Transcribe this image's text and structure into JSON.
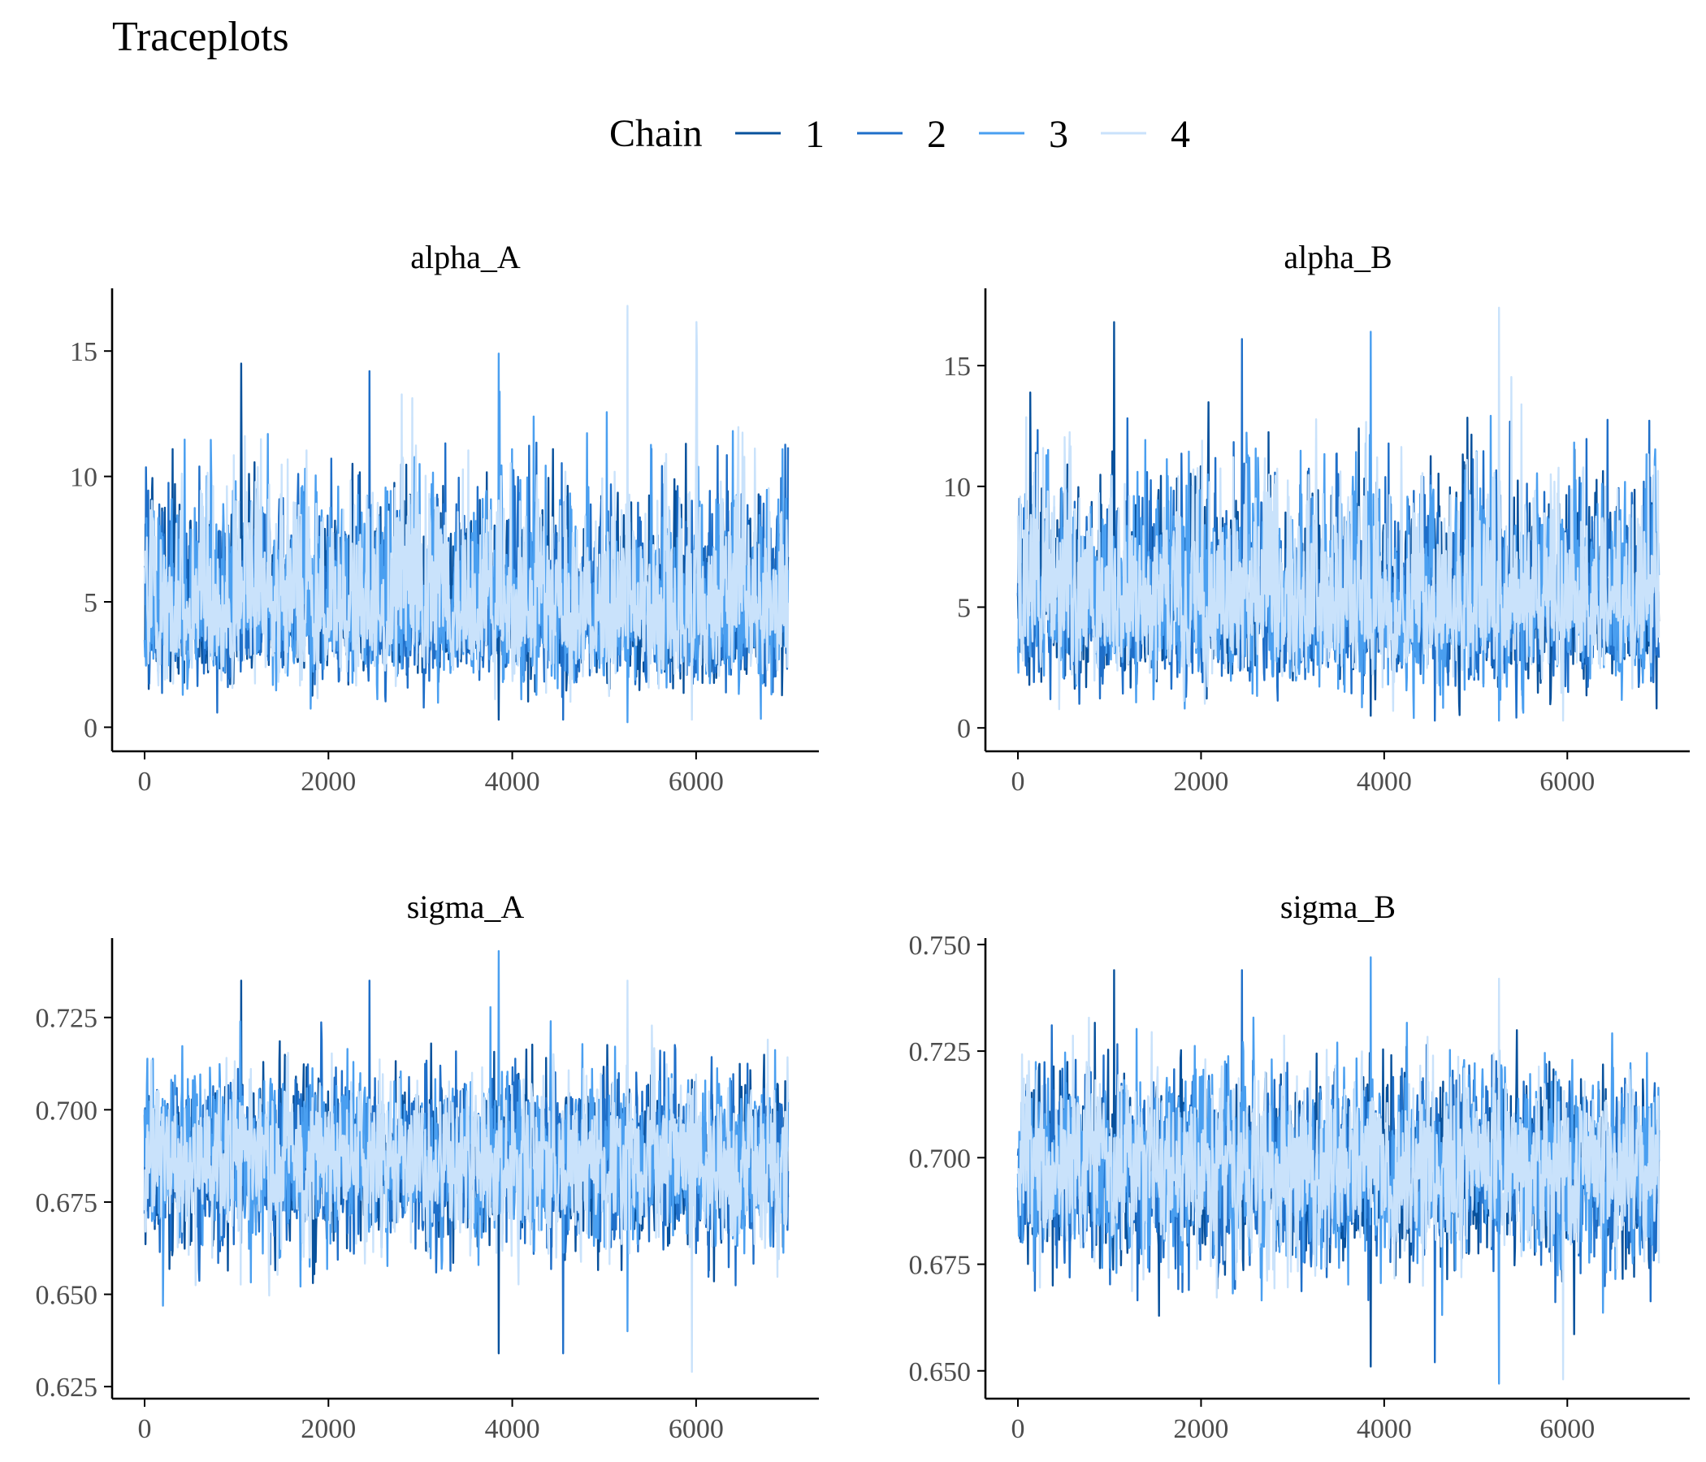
{
  "title": "Traceplots",
  "legend": {
    "title": "Chain",
    "position": "top-center",
    "entries": [
      {
        "label": "1",
        "color": "#08519c"
      },
      {
        "label": "2",
        "color": "#1f6fc9"
      },
      {
        "label": "3",
        "color": "#4a9ff0"
      },
      {
        "label": "4",
        "color": "#c9e2fb"
      }
    ]
  },
  "colors": {
    "chain1": "#08519c",
    "chain2": "#1f6fc9",
    "chain3": "#4a9ff0",
    "chain4": "#c9e2fb",
    "axis": "#000000",
    "tick_text": "#4d4d4d"
  },
  "chart_data": [
    {
      "type": "line",
      "panel_title": "alpha_A",
      "x_range": [
        0,
        7000
      ],
      "x_ticks": [
        0,
        2000,
        4000,
        6000
      ],
      "x_tick_labels": [
        "0",
        "2000",
        "4000",
        "6000"
      ],
      "ylim": [
        -0.7,
        17.5
      ],
      "y_ticks": [
        0,
        5,
        10,
        15
      ],
      "y_tick_labels": [
        "0",
        "5",
        "10",
        "15"
      ],
      "grid": false,
      "series_summary": [
        {
          "name": "1",
          "center": 4.3,
          "typical_range": [
            1.0,
            11.0
          ],
          "max": 14.5,
          "min": 0.3
        },
        {
          "name": "2",
          "center": 4.3,
          "typical_range": [
            1.0,
            11.5
          ],
          "max": 14.2,
          "min": 0.3
        },
        {
          "name": "3",
          "center": 4.3,
          "typical_range": [
            1.0,
            11.5
          ],
          "max": 14.9,
          "min": 0.2
        },
        {
          "name": "4",
          "center": 4.3,
          "typical_range": [
            1.0,
            12.0
          ],
          "max": 16.8,
          "min": 0.3
        }
      ]
    },
    {
      "type": "line",
      "panel_title": "alpha_B",
      "x_range": [
        0,
        7000
      ],
      "x_ticks": [
        0,
        2000,
        4000,
        6000
      ],
      "x_tick_labels": [
        "0",
        "2000",
        "4000",
        "6000"
      ],
      "ylim": [
        -0.7,
        18.2
      ],
      "y_ticks": [
        0,
        5,
        10,
        15
      ],
      "y_tick_labels": [
        "0",
        "5",
        "10",
        "15"
      ],
      "grid": false,
      "series_summary": [
        {
          "name": "1",
          "center": 4.6,
          "typical_range": [
            1.0,
            12.0
          ],
          "max": 16.8,
          "min": 0.5
        },
        {
          "name": "2",
          "center": 4.6,
          "typical_range": [
            1.0,
            12.0
          ],
          "max": 16.1,
          "min": 0.3
        },
        {
          "name": "3",
          "center": 4.6,
          "typical_range": [
            1.0,
            12.5
          ],
          "max": 16.4,
          "min": 0.3
        },
        {
          "name": "4",
          "center": 4.6,
          "typical_range": [
            1.0,
            12.5
          ],
          "max": 17.4,
          "min": 0.3
        }
      ]
    },
    {
      "type": "line",
      "panel_title": "sigma_A",
      "x_range": [
        0,
        7000
      ],
      "x_ticks": [
        0,
        2000,
        4000,
        6000
      ],
      "x_tick_labels": [
        "0",
        "2000",
        "4000",
        "6000"
      ],
      "ylim": [
        0.6235,
        0.7465
      ],
      "y_ticks": [
        0.625,
        0.65,
        0.675,
        0.7,
        0.725
      ],
      "y_tick_labels": [
        "0.625",
        "0.650",
        "0.675",
        "0.700",
        "0.725"
      ],
      "grid": false,
      "series_summary": [
        {
          "name": "1",
          "center": 0.6855,
          "typical_range": [
            0.655,
            0.717
          ],
          "max": 0.735,
          "min": 0.634
        },
        {
          "name": "2",
          "center": 0.6855,
          "typical_range": [
            0.655,
            0.717
          ],
          "max": 0.735,
          "min": 0.634
        },
        {
          "name": "3",
          "center": 0.6855,
          "typical_range": [
            0.655,
            0.718
          ],
          "max": 0.743,
          "min": 0.64
        },
        {
          "name": "4",
          "center": 0.6855,
          "typical_range": [
            0.655,
            0.718
          ],
          "max": 0.735,
          "min": 0.629
        }
      ]
    },
    {
      "type": "line",
      "panel_title": "sigma_B",
      "x_range": [
        0,
        7000
      ],
      "x_ticks": [
        0,
        2000,
        4000,
        6000
      ],
      "x_tick_labels": [
        "0",
        "2000",
        "4000",
        "6000"
      ],
      "ylim": [
        0.645,
        0.7515
      ],
      "y_ticks": [
        0.65,
        0.675,
        0.7,
        0.725,
        0.75
      ],
      "y_tick_labels": [
        "0.650",
        "0.675",
        "0.700",
        "0.725",
        "0.750"
      ],
      "grid": false,
      "series_summary": [
        {
          "name": "1",
          "center": 0.6975,
          "typical_range": [
            0.668,
            0.727
          ],
          "max": 0.744,
          "min": 0.651
        },
        {
          "name": "2",
          "center": 0.6975,
          "typical_range": [
            0.668,
            0.727
          ],
          "max": 0.744,
          "min": 0.652
        },
        {
          "name": "3",
          "center": 0.6975,
          "typical_range": [
            0.668,
            0.728
          ],
          "max": 0.747,
          "min": 0.647
        },
        {
          "name": "4",
          "center": 0.6975,
          "typical_range": [
            0.668,
            0.728
          ],
          "max": 0.742,
          "min": 0.648
        }
      ]
    }
  ]
}
